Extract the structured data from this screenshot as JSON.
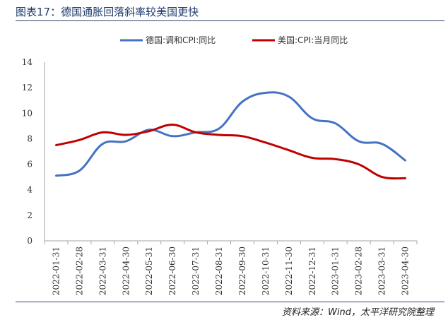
{
  "header": {
    "title": "图表17：德国通胀回落斜率较美国更快"
  },
  "footer": {
    "source": "资料来源：Wind，太平洋研究院整理"
  },
  "chart_data": {
    "type": "line",
    "title": "图表17：德国通胀回落斜率较美国更快",
    "xlabel": "",
    "ylabel": "",
    "categories": [
      "2022-01-31",
      "2022-02-28",
      "2022-03-31",
      "2022-04-30",
      "2022-05-31",
      "2022-06-30",
      "2022-07-31",
      "2022-08-31",
      "2022-09-30",
      "2022-10-31",
      "2022-11-30",
      "2022-12-31",
      "2023-01-31",
      "2023-02-28",
      "2023-03-31",
      "2023-04-30"
    ],
    "ylim": [
      0,
      14
    ],
    "yticks": [
      0,
      2,
      4,
      6,
      8,
      10,
      12,
      14
    ],
    "grid": false,
    "legend": "top",
    "series": [
      {
        "name": "德国:调和CPI:同比",
        "color": "#4472c4",
        "values": [
          5.1,
          5.5,
          7.6,
          7.8,
          8.7,
          8.2,
          8.5,
          8.8,
          10.9,
          11.6,
          11.3,
          9.6,
          9.2,
          7.8,
          7.6,
          6.3
        ]
      },
      {
        "name": "美国:CPI:当月同比",
        "color": "#c00000",
        "values": [
          7.5,
          7.9,
          8.5,
          8.3,
          8.6,
          9.1,
          8.5,
          8.3,
          8.2,
          7.7,
          7.1,
          6.5,
          6.4,
          6.0,
          5.0,
          4.9
        ]
      }
    ]
  }
}
